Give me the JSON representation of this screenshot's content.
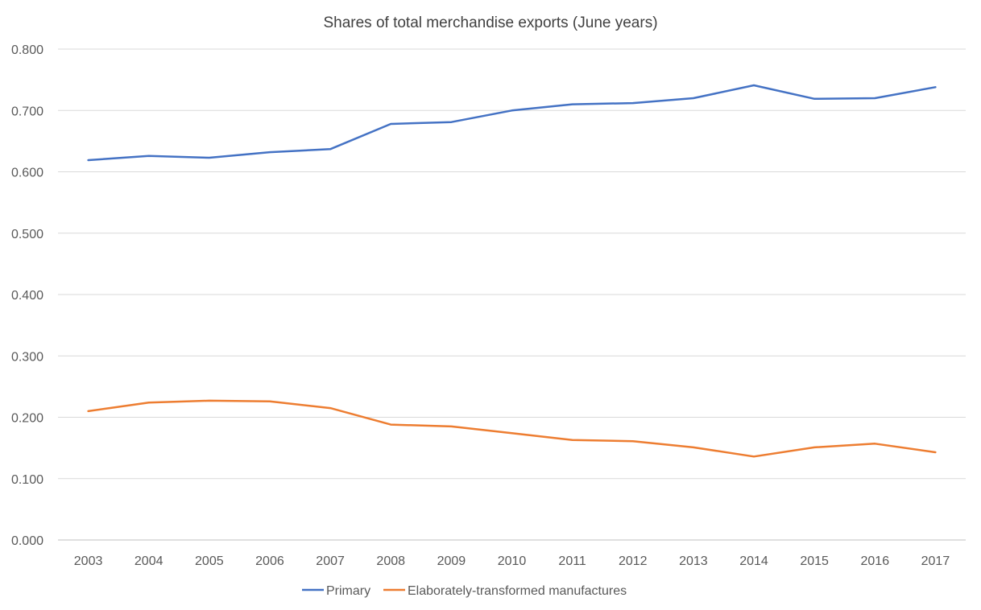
{
  "chart_data": {
    "type": "line",
    "title": "Shares of total merchandise exports (June years)",
    "xlabel": "",
    "ylabel": "",
    "categories": [
      "2003",
      "2004",
      "2005",
      "2006",
      "2007",
      "2008",
      "2009",
      "2010",
      "2011",
      "2012",
      "2013",
      "2014",
      "2015",
      "2016",
      "2017"
    ],
    "ylim": [
      0,
      0.8
    ],
    "yticks": [
      "0.000",
      "0.100",
      "0.200",
      "0.300",
      "0.400",
      "0.500",
      "0.600",
      "0.700",
      "0.800"
    ],
    "grid": true,
    "legend_position": "bottom",
    "series": [
      {
        "name": "Primary",
        "color": "#4472C4",
        "values": [
          0.619,
          0.626,
          0.623,
          0.632,
          0.637,
          0.678,
          0.681,
          0.7,
          0.71,
          0.712,
          0.72,
          0.741,
          0.719,
          0.72,
          0.738
        ]
      },
      {
        "name": "Elaborately-transformed manufactures",
        "color": "#ED7D31",
        "values": [
          0.21,
          0.224,
          0.227,
          0.226,
          0.215,
          0.188,
          0.185,
          0.174,
          0.163,
          0.161,
          0.151,
          0.136,
          0.151,
          0.157,
          0.143
        ]
      }
    ]
  }
}
